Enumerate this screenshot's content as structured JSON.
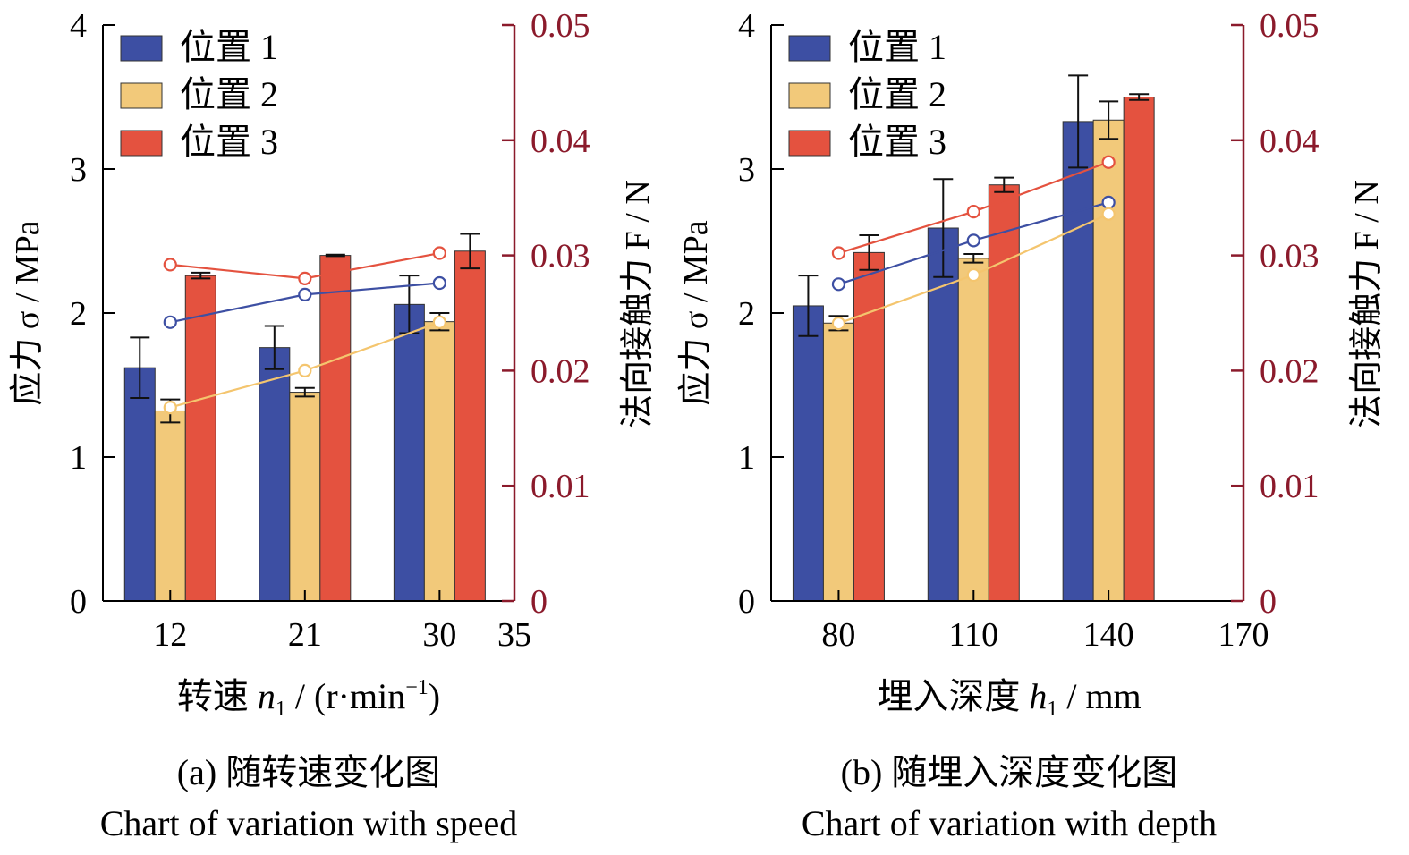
{
  "colors": {
    "series1": "#3d4fa3",
    "series2": "#f2c97a",
    "series3": "#e4523f",
    "line1": "#3d4fa3",
    "line2": "#f4c56e",
    "line3": "#e4523f",
    "right_axis": "#8b1a2b",
    "left_axis": "#000000"
  },
  "chart_data": [
    {
      "type": "bar",
      "caption_cn": "(a) 随转速变化图",
      "caption_en": "Chart of variation with speed",
      "xlabel_prefix": "转速",
      "xlabel_var": "n",
      "xlabel_sub": "1",
      "xlabel_unit": "/ (r·min",
      "xlabel_sup": "−1",
      "xlabel_close": ")",
      "ylabel": "应力 σ / MPa",
      "ylabel_right": "法向接触力 F / N",
      "x_ticks": [
        "12",
        "21",
        "30",
        "35"
      ],
      "x_tick_values": [
        12,
        21,
        30,
        35
      ],
      "xlim": [
        7.5,
        35
      ],
      "ylim": [
        0,
        4
      ],
      "y_ticks": [
        "0",
        "1",
        "2",
        "3",
        "4"
      ],
      "ylim_right": [
        0,
        0.05
      ],
      "y_ticks_right": [
        "0",
        "0.01",
        "0.02",
        "0.03",
        "0.04",
        "0.05"
      ],
      "categories": [
        "12",
        "21",
        "30"
      ],
      "series": [
        {
          "name": "位置 1",
          "values": [
            1.62,
            1.76,
            2.06
          ],
          "errors": [
            0.21,
            0.15,
            0.2
          ]
        },
        {
          "name": "位置 2",
          "values": [
            1.32,
            1.45,
            1.94
          ],
          "errors": [
            0.08,
            0.03,
            0.06
          ]
        },
        {
          "name": "位置 3",
          "values": [
            2.26,
            2.4,
            2.43
          ],
          "errors": [
            0.02,
            0.005,
            0.12
          ]
        }
      ],
      "line_series": [
        {
          "name": "位置 1",
          "x": [
            12,
            21,
            30
          ],
          "values": [
            0.0242,
            0.0266,
            0.0276
          ]
        },
        {
          "name": "位置 2",
          "x": [
            12,
            21,
            30
          ],
          "values": [
            0.0168,
            0.02,
            0.0242
          ]
        },
        {
          "name": "位置 3",
          "x": [
            12,
            21,
            30
          ],
          "values": [
            0.0292,
            0.028,
            0.0302
          ]
        }
      ],
      "legend": [
        "位置 1",
        "位置 2",
        "位置 3"
      ],
      "legend_position": "top-left",
      "grid": false
    },
    {
      "type": "bar",
      "caption_cn": "(b) 随埋入深度变化图",
      "caption_en": "Chart of variation with depth",
      "xlabel_prefix": "埋入深度",
      "xlabel_var": "h",
      "xlabel_sub": "1",
      "xlabel_unit": "/ mm",
      "xlabel_sup": "",
      "xlabel_close": "",
      "ylabel": "应力 σ / MPa",
      "ylabel_right": "法向接触力 F / N",
      "x_ticks": [
        "80",
        "110",
        "140",
        "170"
      ],
      "x_tick_values": [
        80,
        110,
        140,
        170
      ],
      "xlim": [
        65,
        170
      ],
      "ylim": [
        0,
        4
      ],
      "y_ticks": [
        "0",
        "1",
        "2",
        "3",
        "4"
      ],
      "ylim_right": [
        0,
        0.05
      ],
      "y_ticks_right": [
        "0",
        "0.01",
        "0.02",
        "0.03",
        "0.04",
        "0.05"
      ],
      "categories": [
        "80",
        "110",
        "140"
      ],
      "series": [
        {
          "name": "位置 1",
          "values": [
            2.05,
            2.59,
            3.33
          ],
          "errors": [
            0.21,
            0.34,
            0.32
          ]
        },
        {
          "name": "位置 2",
          "values": [
            1.93,
            2.38,
            3.34
          ],
          "errors": [
            0.05,
            0.03,
            0.13
          ]
        },
        {
          "name": "位置 3",
          "values": [
            2.42,
            2.89,
            3.5
          ],
          "errors": [
            0.12,
            0.05,
            0.02
          ]
        }
      ],
      "line_series": [
        {
          "name": "位置 1",
          "x": [
            80,
            110,
            140
          ],
          "values": [
            0.0275,
            0.0313,
            0.0346
          ]
        },
        {
          "name": "位置 2",
          "x": [
            80,
            110,
            140
          ],
          "values": [
            0.0241,
            0.0283,
            0.0336
          ]
        },
        {
          "name": "位置 3",
          "x": [
            80,
            110,
            140
          ],
          "values": [
            0.0302,
            0.0338,
            0.0381
          ]
        }
      ],
      "legend": [
        "位置 1",
        "位置 2",
        "位置 3"
      ],
      "legend_position": "top-left",
      "grid": false
    }
  ]
}
